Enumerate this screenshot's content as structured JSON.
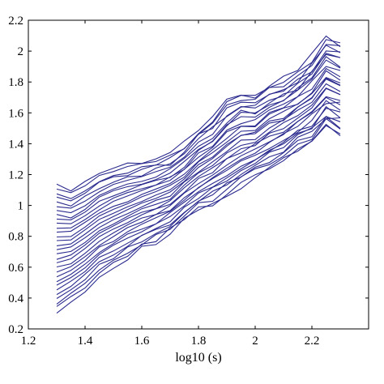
{
  "chart_data": {
    "type": "line",
    "title": "",
    "xlabel": "log10 (s)",
    "ylabel": "",
    "xlim": [
      1.2,
      2.4
    ],
    "ylim": [
      0.2,
      2.2
    ],
    "x_ticks": [
      "1.2",
      "1.4",
      "1.6",
      "1.8",
      "2",
      "2.2"
    ],
    "y_ticks": [
      "0.2",
      "0.4",
      "0.6",
      "0.8",
      "1",
      "1.2",
      "1.4",
      "1.6",
      "1.8",
      "2",
      "2.2"
    ],
    "grid": false,
    "legend": "none",
    "line_color": "#2b2b8f",
    "series_count": 30,
    "x": [
      1.3,
      1.35,
      1.4,
      1.45,
      1.5,
      1.55,
      1.6,
      1.65,
      1.7,
      1.75,
      1.8,
      1.85,
      1.9,
      1.95,
      2.0,
      2.05,
      2.1,
      2.15,
      2.2,
      2.25,
      2.3
    ],
    "top_series": [
      1.14,
      1.1,
      1.15,
      1.21,
      1.24,
      1.26,
      1.28,
      1.31,
      1.33,
      1.4,
      1.5,
      1.57,
      1.68,
      1.74,
      1.72,
      1.78,
      1.82,
      1.88,
      1.96,
      2.08,
      2.05
    ],
    "bottom_series": [
      0.31,
      0.38,
      0.45,
      0.54,
      0.6,
      0.66,
      0.72,
      0.76,
      0.82,
      0.9,
      0.96,
      1.0,
      1.06,
      1.12,
      1.18,
      1.24,
      1.28,
      1.34,
      1.4,
      1.5,
      1.47
    ]
  }
}
